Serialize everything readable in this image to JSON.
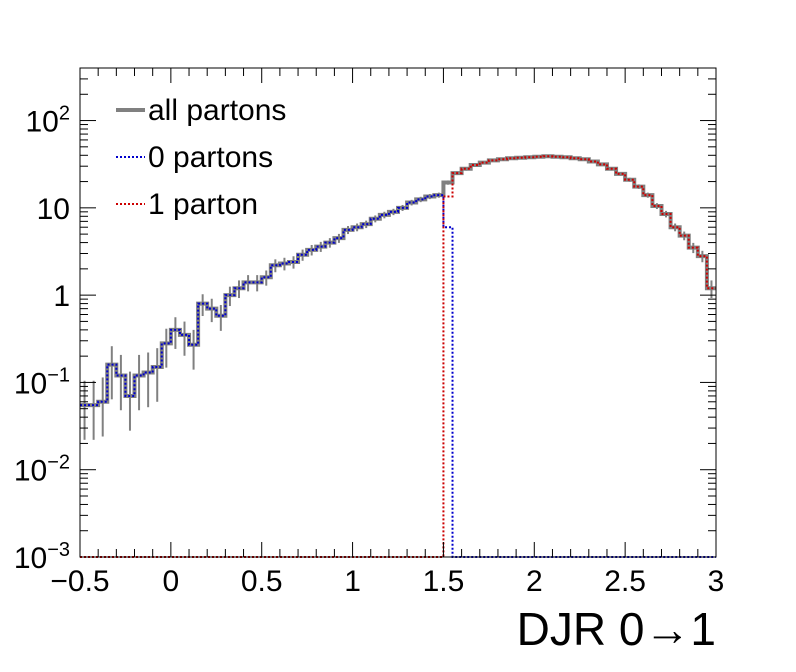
{
  "chart_data": {
    "type": "line",
    "xlabel": "DJR 0→1",
    "ylabel": "",
    "xlim": [
      -0.5,
      3.0
    ],
    "ylim": [
      0.001,
      400
    ],
    "yscale": "log",
    "grid": false,
    "legend_position": "top-left",
    "x_ticks": [
      {
        "value": -0.5,
        "label": "−0.5"
      },
      {
        "value": 0,
        "label": "0"
      },
      {
        "value": 0.5,
        "label": "0.5"
      },
      {
        "value": 1,
        "label": "1"
      },
      {
        "value": 1.5,
        "label": "1.5"
      },
      {
        "value": 2,
        "label": "2"
      },
      {
        "value": 2.5,
        "label": "2.5"
      },
      {
        "value": 3,
        "label": "3"
      }
    ],
    "y_ticks": [
      {
        "value": 0.001,
        "base": "10",
        "exp": "−3"
      },
      {
        "value": 0.01,
        "base": "10",
        "exp": "−2"
      },
      {
        "value": 0.1,
        "base": "10",
        "exp": "−1"
      },
      {
        "value": 1,
        "base": "1",
        "exp": ""
      },
      {
        "value": 10,
        "base": "10",
        "exp": ""
      },
      {
        "value": 100,
        "base": "10",
        "exp": "2"
      }
    ],
    "bin_width": 0.05,
    "series": [
      {
        "name": "all partons",
        "color": "#808080",
        "style": "solid",
        "x_start": -0.5,
        "values": [
          0.055,
          0.055,
          0.06,
          0.16,
          0.12,
          0.07,
          0.12,
          0.13,
          0.15,
          0.28,
          0.4,
          0.35,
          0.27,
          0.8,
          0.7,
          0.58,
          1.0,
          1.2,
          1.4,
          1.4,
          1.6,
          2.2,
          2.3,
          2.4,
          2.9,
          3.3,
          3.6,
          4.0,
          4.5,
          5.6,
          6.0,
          6.5,
          7.5,
          8.3,
          9.0,
          10.0,
          11.5,
          12.5,
          13.5,
          14.0,
          19.5,
          25,
          28,
          31,
          33,
          35,
          36,
          37,
          37.5,
          38,
          38.5,
          39,
          38.5,
          38,
          37,
          36,
          34,
          31.5,
          28,
          24.5,
          21,
          17.5,
          14,
          10.5,
          8.5,
          6,
          4.8,
          3.5,
          2.8,
          1.2
        ]
      },
      {
        "name": "0 partons",
        "color": "#0000cc",
        "style": "dotted",
        "x_start": -0.5,
        "values": [
          0.055,
          0.055,
          0.06,
          0.16,
          0.12,
          0.07,
          0.12,
          0.13,
          0.15,
          0.28,
          0.4,
          0.35,
          0.27,
          0.8,
          0.7,
          0.58,
          1.0,
          1.2,
          1.4,
          1.4,
          1.6,
          2.2,
          2.3,
          2.4,
          2.9,
          3.3,
          3.6,
          4.0,
          4.5,
          5.6,
          6.0,
          6.5,
          7.5,
          8.3,
          9.0,
          10.0,
          11.5,
          12.5,
          13.5,
          14.0,
          6.0,
          0,
          0,
          0,
          0,
          0,
          0,
          0,
          0,
          0,
          0,
          0,
          0,
          0,
          0,
          0,
          0,
          0,
          0,
          0,
          0,
          0,
          0,
          0,
          0,
          0,
          0,
          0,
          0,
          0
        ]
      },
      {
        "name": "1 parton",
        "color": "#cc0000",
        "style": "dotted",
        "x_start": -0.5,
        "values": [
          0,
          0,
          0,
          0,
          0,
          0,
          0,
          0,
          0,
          0,
          0,
          0,
          0,
          0,
          0,
          0,
          0,
          0,
          0,
          0,
          0,
          0,
          0,
          0,
          0,
          0,
          0,
          0,
          0,
          0,
          0,
          0,
          0,
          0,
          0,
          0,
          0,
          0,
          0,
          0,
          13.5,
          25,
          28,
          31,
          33,
          35,
          36,
          37,
          37.5,
          38,
          38.5,
          39,
          38.5,
          38,
          37,
          36,
          34,
          31.5,
          28,
          24.5,
          21,
          17.5,
          14,
          10.5,
          8.5,
          6,
          4.8,
          3.5,
          2.8,
          1.2
        ]
      }
    ]
  }
}
